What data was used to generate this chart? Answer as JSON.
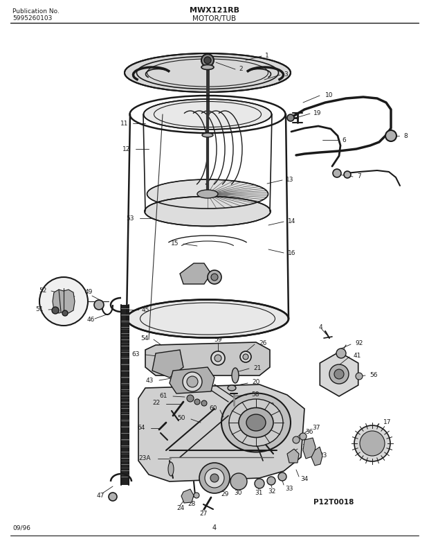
{
  "title_center": "MWX121RB",
  "subtitle_center": "MOTOR/TUB",
  "pub_no_label": "Publication No.",
  "pub_no_value": "5995260103",
  "diagram_id": "P12T0018",
  "page_number": "4",
  "date": "09/96",
  "bg_color": "#ffffff",
  "line_color": "#1a1a1a",
  "text_color": "#1a1a1a",
  "fig_width": 6.2,
  "fig_height": 7.91,
  "gray_light": "#d8d8d8",
  "gray_mid": "#b0b0b0",
  "gray_dark": "#888888"
}
